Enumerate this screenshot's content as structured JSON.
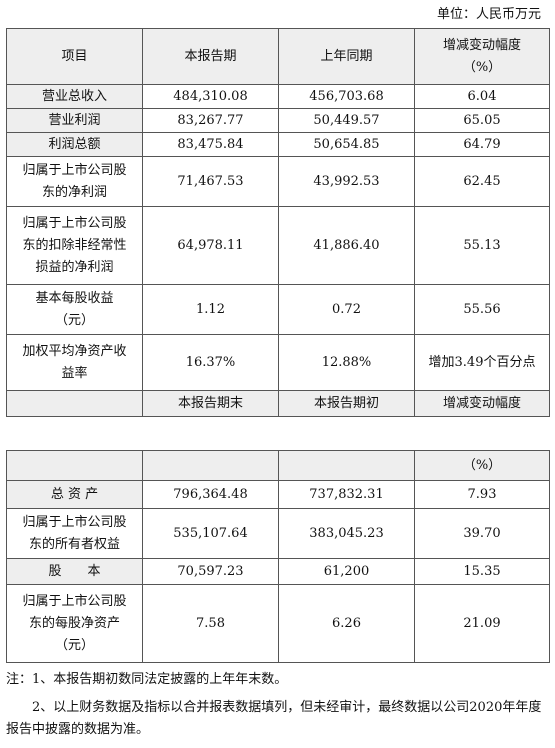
{
  "unit_label": "单位：人民币万元",
  "table1": {
    "headers": [
      "项目",
      "本报告期",
      "上年同期",
      "增减变动幅度",
      "（%）"
    ],
    "rows": [
      {
        "label": [
          "营业总收入"
        ],
        "current": "484,310.08",
        "prior": "456,703.68",
        "change": "6.04"
      },
      {
        "label": [
          "营业利润"
        ],
        "current": "83,267.77",
        "prior": "50,449.57",
        "change": "65.05"
      },
      {
        "label": [
          "利润总额"
        ],
        "current": "83,475.84",
        "prior": "50,654.85",
        "change": "64.79"
      },
      {
        "label": [
          "归属于上市公司股",
          "东的净利润"
        ],
        "current": "71,467.53",
        "prior": "43,992.53",
        "change": "62.45"
      },
      {
        "label": [
          "归属于上市公司股",
          "东的扣除非经常性",
          "损益的净利润"
        ],
        "current": "64,978.11",
        "prior": "41,886.40",
        "change": "55.13"
      },
      {
        "label": [
          "基本每股收益",
          "（元）"
        ],
        "current": "1.12",
        "prior": "0.72",
        "change": "55.56"
      },
      {
        "label": [
          "加权平均净资产收",
          "益率"
        ],
        "current": "16.37%",
        "prior": "12.88%",
        "change": "增加3.49个百分点"
      }
    ],
    "subheaders": [
      "本报告期末",
      "本报告期初",
      "增减变动幅度"
    ]
  },
  "table2": {
    "unit_cell": "（%）",
    "rows": [
      {
        "label": [
          "总 资 产"
        ],
        "end": "796,364.48",
        "begin": "737,832.31",
        "change": "7.93"
      },
      {
        "label": [
          "归属于上市公司股",
          "东的所有者权益"
        ],
        "end": "535,107.64",
        "begin": "383,045.23",
        "change": "39.70"
      },
      {
        "label": [
          "股　　本"
        ],
        "end": "70,597.23",
        "begin": "61,200",
        "change": "15.35"
      },
      {
        "label": [
          "归属于上市公司股",
          "东的每股净资产",
          "（元）"
        ],
        "end": "7.58",
        "begin": "6.26",
        "change": "21.09"
      }
    ]
  },
  "notes": [
    "注：1、本报告期初数同法定披露的上年年末数。",
    "2、以上财务数据及指标以合并报表数据填列，但未经审计，最终数据以公司2020年年度报告中披露的数据为准。"
  ]
}
